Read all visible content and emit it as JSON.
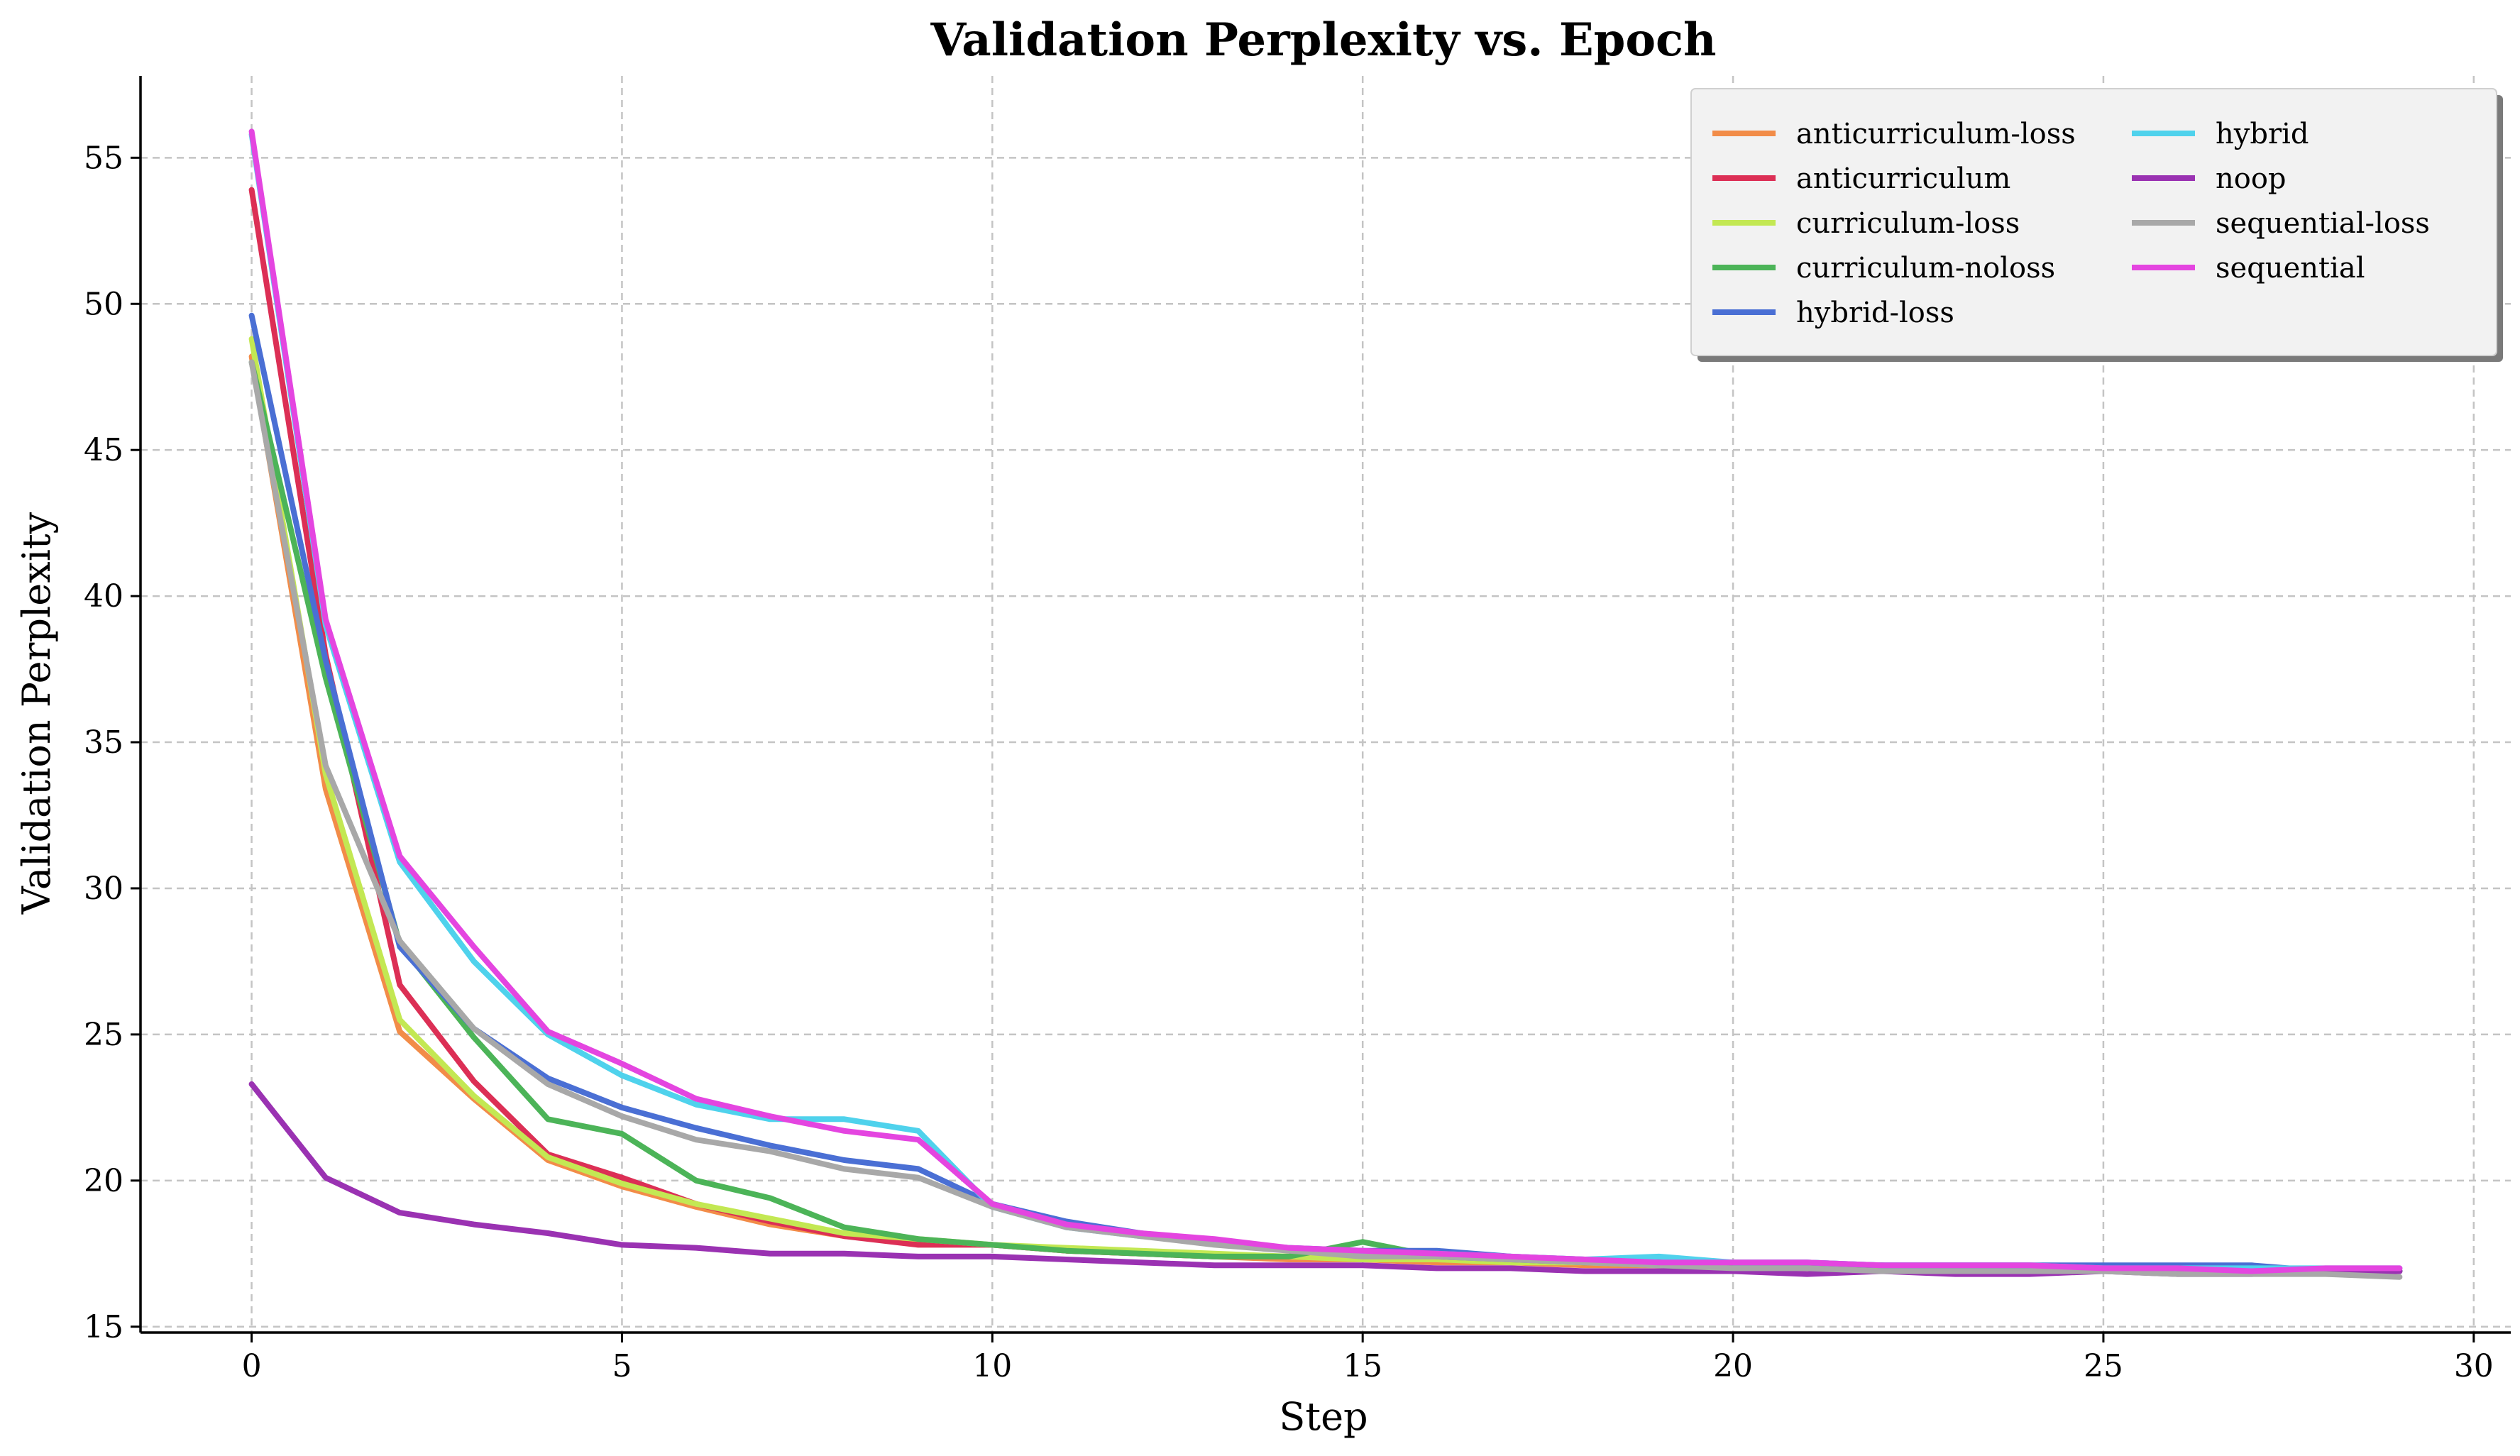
{
  "chart_data": {
    "type": "line",
    "title": "Validation Perplexity vs. Epoch",
    "xlabel": "Step",
    "ylabel": "Validation Perplexity",
    "xlim": [
      -1.5,
      30.5
    ],
    "ylim": [
      14.8,
      57.8
    ],
    "xticks": [
      0,
      5,
      10,
      15,
      20,
      25,
      30
    ],
    "yticks": [
      15,
      20,
      25,
      30,
      35,
      40,
      45,
      50,
      55
    ],
    "grid": true,
    "legend_position": "top-right",
    "x": [
      0,
      1,
      2,
      3,
      4,
      5,
      6,
      7,
      8,
      9,
      10,
      11,
      12,
      13,
      14,
      15,
      16,
      17,
      18,
      19,
      20,
      21,
      22,
      23,
      24,
      25,
      26,
      27,
      28,
      29
    ],
    "series": [
      {
        "name": "anticurriculum-loss",
        "color": "#f28c48",
        "values": [
          48.2,
          33.4,
          25.1,
          22.8,
          20.7,
          19.8,
          19.1,
          18.5,
          18.1,
          17.9,
          17.8,
          17.6,
          17.5,
          17.4,
          17.3,
          17.3,
          17.2,
          17.2,
          17.1,
          17.1,
          17.1,
          17.0,
          17.0,
          17.0,
          17.0,
          16.9,
          16.9,
          16.9,
          16.9,
          16.9
        ]
      },
      {
        "name": "anticurriculum",
        "color": "#dc2f55",
        "values": [
          53.9,
          38.0,
          26.7,
          23.4,
          20.9,
          20.1,
          19.2,
          18.6,
          18.1,
          17.8,
          17.8,
          17.6,
          17.5,
          17.4,
          17.4,
          17.4,
          17.3,
          17.3,
          17.2,
          17.2,
          17.1,
          17.1,
          17.1,
          17.0,
          17.0,
          17.0,
          17.0,
          17.0,
          16.9,
          16.9
        ]
      },
      {
        "name": "curriculum-loss",
        "color": "#c3e853",
        "values": [
          48.8,
          33.9,
          25.5,
          22.9,
          20.8,
          19.9,
          19.2,
          18.7,
          18.2,
          18.0,
          17.8,
          17.7,
          17.6,
          17.5,
          17.4,
          17.3,
          17.3,
          17.2,
          17.2,
          17.1,
          17.1,
          17.1,
          17.0,
          17.0,
          17.0,
          17.0,
          16.9,
          16.9,
          16.9,
          16.9
        ]
      },
      {
        "name": "curriculum-noloss",
        "color": "#4cb458",
        "values": [
          48.0,
          37.2,
          28.1,
          24.9,
          22.1,
          21.6,
          20.0,
          19.4,
          18.4,
          18.0,
          17.8,
          17.6,
          17.5,
          17.4,
          17.4,
          17.9,
          17.4,
          17.3,
          17.2,
          17.2,
          17.1,
          17.1,
          17.1,
          17.0,
          17.0,
          17.0,
          17.0,
          17.0,
          16.9,
          16.9
        ]
      },
      {
        "name": "hybrid-loss",
        "color": "#4a6fd4",
        "values": [
          49.6,
          37.8,
          28.0,
          25.2,
          23.5,
          22.5,
          21.8,
          21.2,
          20.7,
          20.4,
          19.2,
          18.6,
          18.2,
          17.9,
          17.7,
          17.6,
          17.6,
          17.4,
          17.3,
          17.2,
          17.2,
          17.2,
          17.1,
          17.1,
          17.1,
          17.1,
          17.1,
          17.1,
          16.9,
          16.9
        ]
      },
      {
        "name": "hybrid",
        "color": "#4fd2ec",
        "values": [
          55.8,
          39.0,
          30.9,
          27.5,
          25.0,
          23.6,
          22.6,
          22.1,
          22.1,
          21.7,
          19.1,
          18.4,
          18.1,
          17.9,
          17.7,
          17.5,
          17.5,
          17.4,
          17.3,
          17.4,
          17.2,
          17.2,
          17.1,
          17.1,
          17.1,
          17.0,
          17.0,
          17.0,
          17.0,
          17.0
        ]
      },
      {
        "name": "noop",
        "color": "#9a32b2",
        "values": [
          23.3,
          20.1,
          18.9,
          18.5,
          18.2,
          17.8,
          17.7,
          17.5,
          17.5,
          17.4,
          17.4,
          17.3,
          17.2,
          17.1,
          17.1,
          17.1,
          17.0,
          17.0,
          16.9,
          16.9,
          16.9,
          16.8,
          16.9,
          16.8,
          16.8,
          16.9,
          16.8,
          16.8,
          16.9,
          16.9
        ]
      },
      {
        "name": "sequential-loss",
        "color": "#a8a8a8",
        "values": [
          48.0,
          34.2,
          28.2,
          25.2,
          23.3,
          22.2,
          21.4,
          21.0,
          20.4,
          20.1,
          19.1,
          18.4,
          18.1,
          17.8,
          17.6,
          17.4,
          17.4,
          17.3,
          17.2,
          17.1,
          17.0,
          17.0,
          16.9,
          16.9,
          16.9,
          16.9,
          16.8,
          16.8,
          16.8,
          16.7
        ]
      },
      {
        "name": "sequential",
        "color": "#e445e0",
        "values": [
          55.9,
          39.2,
          31.1,
          28.0,
          25.1,
          24.0,
          22.8,
          22.2,
          21.7,
          21.4,
          19.2,
          18.5,
          18.2,
          18.0,
          17.7,
          17.6,
          17.5,
          17.4,
          17.3,
          17.2,
          17.2,
          17.2,
          17.1,
          17.1,
          17.1,
          17.0,
          17.0,
          16.9,
          17.0,
          17.0
        ]
      }
    ]
  }
}
